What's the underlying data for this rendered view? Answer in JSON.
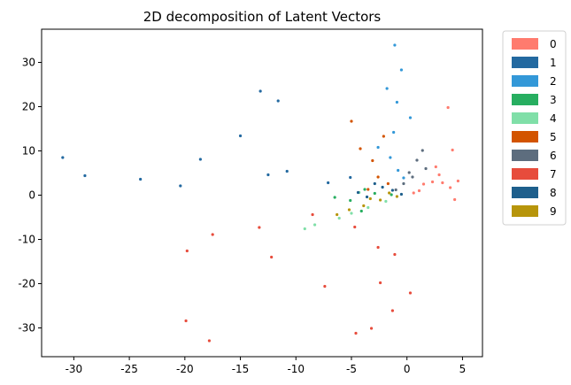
{
  "chart_data": {
    "type": "scatter",
    "title": "2D decomposition of Latent Vectors",
    "xlabel": "",
    "ylabel": "",
    "xlim": [
      -32.9,
      6.8
    ],
    "ylim": [
      -36.5,
      37.5
    ],
    "x_ticks": [
      -30,
      -25,
      -20,
      -15,
      -10,
      -5,
      0,
      5
    ],
    "y_ticks": [
      -30,
      -20,
      -10,
      0,
      10,
      20,
      30
    ],
    "grid": false,
    "legend_position": "outside-right",
    "series": [
      {
        "name": "0",
        "color": "#ff7b6e",
        "values": [
          [
            1.5,
            2.5
          ],
          [
            2.3,
            3.0
          ],
          [
            3.2,
            2.8
          ],
          [
            3.9,
            1.7
          ],
          [
            2.6,
            6.4
          ],
          [
            4.1,
            10.2
          ],
          [
            1.1,
            1.0
          ],
          [
            2.9,
            4.6
          ],
          [
            4.6,
            3.2
          ],
          [
            0.6,
            0.5
          ],
          [
            3.7,
            19.8
          ],
          [
            4.3,
            -1.0
          ]
        ]
      },
      {
        "name": "1",
        "color": "#2369a0",
        "values": [
          [
            -24.0,
            3.6
          ],
          [
            -12.5,
            4.6
          ],
          [
            -7.1,
            2.8
          ],
          [
            -29.0,
            4.4
          ],
          [
            -18.6,
            8.1
          ],
          [
            -15.0,
            13.4
          ],
          [
            -10.8,
            5.4
          ],
          [
            -20.4,
            2.1
          ],
          [
            -31.0,
            8.5
          ],
          [
            -13.2,
            23.5
          ],
          [
            -5.1,
            4.0
          ],
          [
            -11.6,
            21.3
          ]
        ]
      },
      {
        "name": "2",
        "color": "#3398d8",
        "values": [
          [
            -1.2,
            14.2
          ],
          [
            -0.9,
            21.0
          ],
          [
            -0.5,
            28.3
          ],
          [
            -1.5,
            8.5
          ],
          [
            -0.8,
            5.6
          ],
          [
            0.3,
            17.5
          ],
          [
            -1.1,
            33.9
          ],
          [
            -2.6,
            10.8
          ],
          [
            -0.3,
            3.9
          ],
          [
            -1.8,
            24.1
          ]
        ]
      },
      {
        "name": "3",
        "color": "#27ae60",
        "values": [
          [
            -5.1,
            -1.2
          ],
          [
            -2.9,
            0.4
          ],
          [
            -4.1,
            -3.6
          ],
          [
            -1.4,
            0.1
          ],
          [
            -3.8,
            1.3
          ],
          [
            -6.5,
            -0.5
          ]
        ]
      },
      {
        "name": "4",
        "color": "#80dfa8",
        "values": [
          [
            -6.1,
            -5.2
          ],
          [
            -3.5,
            -2.8
          ],
          [
            -8.3,
            -6.7
          ],
          [
            -1.9,
            -1.4
          ],
          [
            -5.0,
            -4.1
          ],
          [
            -9.2,
            -7.6
          ],
          [
            -4.3,
            0.6
          ]
        ]
      },
      {
        "name": "5",
        "color": "#d35400",
        "values": [
          [
            -3.1,
            7.8
          ],
          [
            -4.2,
            10.5
          ],
          [
            -2.6,
            4.1
          ],
          [
            -1.7,
            2.6
          ],
          [
            -5.0,
            16.7
          ],
          [
            -3.5,
            1.3
          ],
          [
            -2.1,
            13.3
          ]
        ]
      },
      {
        "name": "6",
        "color": "#5d6d7e",
        "values": [
          [
            0.9,
            7.9
          ],
          [
            -0.3,
            2.6
          ],
          [
            1.4,
            10.1
          ],
          [
            0.2,
            5.1
          ],
          [
            1.7,
            6.0
          ],
          [
            0.5,
            4.1
          ],
          [
            -1.0,
            1.2
          ]
        ]
      },
      {
        "name": "7",
        "color": "#e74c3c",
        "values": [
          [
            -2.6,
            -11.8
          ],
          [
            -2.4,
            -19.8
          ],
          [
            -1.3,
            -26.1
          ],
          [
            -4.7,
            -7.2
          ],
          [
            -8.5,
            -4.4
          ],
          [
            -13.3,
            -7.3
          ],
          [
            -17.5,
            -8.9
          ],
          [
            -19.8,
            -12.6
          ],
          [
            -12.2,
            -14.0
          ],
          [
            -7.4,
            -20.6
          ],
          [
            -3.2,
            -30.1
          ],
          [
            -17.8,
            -32.9
          ],
          [
            -1.1,
            -13.4
          ],
          [
            -4.6,
            -31.2
          ],
          [
            -19.9,
            -28.4
          ],
          [
            0.3,
            -22.1
          ]
        ]
      },
      {
        "name": "8",
        "color": "#1e5f8c",
        "values": [
          [
            -4.4,
            0.6
          ],
          [
            -2.2,
            1.8
          ],
          [
            -3.6,
            -0.4
          ],
          [
            -1.3,
            1.1
          ],
          [
            -2.9,
            2.6
          ],
          [
            -0.5,
            0.2
          ]
        ]
      },
      {
        "name": "9",
        "color": "#b7950b",
        "values": [
          [
            -3.9,
            -2.4
          ],
          [
            -2.4,
            -1.1
          ],
          [
            -5.2,
            -3.3
          ],
          [
            -1.6,
            0.5
          ],
          [
            -3.3,
            -0.8
          ],
          [
            -0.9,
            -0.3
          ],
          [
            -6.3,
            -4.4
          ]
        ]
      }
    ]
  }
}
